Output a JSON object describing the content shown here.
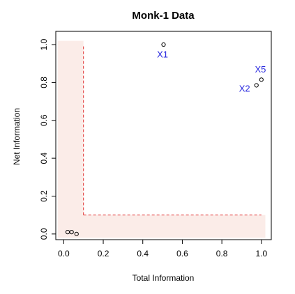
{
  "chart_data": {
    "type": "scatter",
    "title": "Monk-1 Data",
    "xlabel": "Total Information",
    "ylabel": "Net Information",
    "xlim": [
      -0.04,
      1.05
    ],
    "ylim": [
      -0.03,
      1.07
    ],
    "xticks": [
      {
        "value": 0.0,
        "label": "0.0"
      },
      {
        "value": 0.2,
        "label": "0.2"
      },
      {
        "value": 0.4,
        "label": "0.4"
      },
      {
        "value": 0.6,
        "label": "0.6"
      },
      {
        "value": 0.8,
        "label": "0.8"
      },
      {
        "value": 1.0,
        "label": "1.0"
      }
    ],
    "yticks": [
      {
        "value": 0.0,
        "label": "0.0"
      },
      {
        "value": 0.2,
        "label": "0.2"
      },
      {
        "value": 0.4,
        "label": "0.4"
      },
      {
        "value": 0.6,
        "label": "0.6"
      },
      {
        "value": 0.8,
        "label": "0.8"
      },
      {
        "value": 1.0,
        "label": "1.0"
      }
    ],
    "points": [
      {
        "x": 0.02,
        "y": 0.01
      },
      {
        "x": 0.04,
        "y": 0.01
      },
      {
        "x": 0.065,
        "y": 0.0
      },
      {
        "x": 0.505,
        "y": 1.0
      },
      {
        "x": 0.975,
        "y": 0.785
      },
      {
        "x": 1.0,
        "y": 0.815
      }
    ],
    "annotations": [
      {
        "text": "X1",
        "x": 0.5,
        "y": 0.945
      },
      {
        "text": "X2",
        "x": 0.915,
        "y": 0.765
      },
      {
        "text": "X5",
        "x": 0.995,
        "y": 0.865
      }
    ],
    "shaded_region": {
      "color": "#fbece8",
      "outer": {
        "x0": -0.03,
        "x1": 1.02,
        "y0": -0.02,
        "y1": 1.02
      },
      "inner_corner": {
        "x": 0.1,
        "y": 0.1
      }
    },
    "threshold_lines": {
      "color": "#e03030",
      "x": 0.1,
      "y": 0.1,
      "x_end": 1.0,
      "y_end": 1.0
    },
    "colors": {
      "annotation": "#2a2adf",
      "points": "#000000",
      "axis": "#000000"
    },
    "grid": false,
    "legend": "none"
  }
}
